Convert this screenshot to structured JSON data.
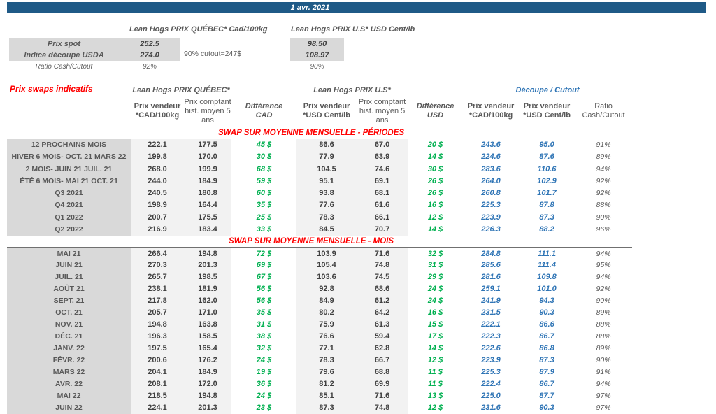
{
  "title_bar": {
    "date": "1 avr. 2021"
  },
  "summary": {
    "qc_header": "Lean Hogs PRIX QUÉBEC* Cad/100kg",
    "us_header": "Lean Hogs PRIX U.S* USD Cent/lb",
    "rows": {
      "spot": {
        "label": "Prix spot",
        "qc": "252.5",
        "us": "98.50"
      },
      "indice": {
        "label": "Indice découpe USDA",
        "qc": "274.0",
        "us": "108.97",
        "note": "90% cutout=247$"
      },
      "ratio": {
        "label": "Ratio Cash/Cutout",
        "qc": "92%",
        "us": "90%"
      }
    }
  },
  "swaps": {
    "title": "Prix swaps indicatifs",
    "group_headers": {
      "qc": "Lean Hogs PRIX QUÉBEC*",
      "us": "Lean Hogs PRIX U.S*",
      "decoupe": "Découpe / Cutout"
    },
    "column_headers": {
      "cad_vendeur": "Prix vendeur\n*CAD/100kg",
      "cad_comptant": "Prix comptant\nhist. moyen 5\nans",
      "diff_cad": "Différence\nCAD",
      "usd_vendeur": "Prix vendeur\n*USD Cent/lb",
      "usd_comptant": "Prix comptant\nhist. moyen 5\nans",
      "diff_usd": "Différence\nUSD",
      "dec_cad": "Prix vendeur\n*CAD/100kg",
      "dec_usd": "Prix vendeur\n*USD Cent/lb",
      "ratio": "Ratio\nCash/Cutout"
    },
    "sections": [
      {
        "title": "SWAP SUR MOYENNE MENSUELLE - PÉRIODES",
        "rows": [
          {
            "label": "12 PROCHAINS MOIS",
            "values": [
              "222.1",
              "177.5",
              "45 $",
              "86.6",
              "67.0",
              "20 $",
              "243.6",
              "95.0",
              "91%"
            ]
          },
          {
            "label": "HIVER 6 MOIS- OCT. 21 MARS 22",
            "values": [
              "199.8",
              "170.0",
              "30 $",
              "77.9",
              "63.9",
              "14 $",
              "224.6",
              "87.6",
              "89%"
            ]
          },
          {
            "label": "2 MOIS- JUIN 21 JUIL. 21",
            "values": [
              "268.0",
              "199.9",
              "68 $",
              "104.5",
              "74.6",
              "30 $",
              "283.6",
              "110.6",
              "94%"
            ]
          },
          {
            "label": "ÉTÉ 6 MOIS- MAI 21 OCT. 21",
            "values": [
              "244.0",
              "184.9",
              "59 $",
              "95.1",
              "69.1",
              "26 $",
              "264.0",
              "102.9",
              "92%"
            ]
          },
          {
            "label": "Q3 2021",
            "values": [
              "240.5",
              "180.8",
              "60 $",
              "93.8",
              "68.1",
              "26 $",
              "260.8",
              "101.7",
              "92%"
            ]
          },
          {
            "label": "Q4 2021",
            "values": [
              "198.9",
              "164.4",
              "35 $",
              "77.6",
              "61.6",
              "16 $",
              "225.3",
              "87.8",
              "88%"
            ]
          },
          {
            "label": "Q1 2022",
            "values": [
              "200.7",
              "175.5",
              "25 $",
              "78.3",
              "66.1",
              "12 $",
              "223.9",
              "87.3",
              "90%"
            ]
          },
          {
            "label": "Q2 2022",
            "values": [
              "216.9",
              "183.4",
              "33 $",
              "84.5",
              "70.7",
              "14 $",
              "226.3",
              "88.2",
              "96%"
            ]
          }
        ]
      },
      {
        "title": "SWAP SUR MOYENNE MENSUELLE - MOIS",
        "rows": [
          {
            "label": "MAI 21",
            "values": [
              "266.4",
              "194.8",
              "72 $",
              "103.9",
              "71.6",
              "32 $",
              "284.8",
              "111.1",
              "94%"
            ]
          },
          {
            "label": "JUIN 21",
            "values": [
              "270.3",
              "201.3",
              "69 $",
              "105.4",
              "74.8",
              "31 $",
              "285.6",
              "111.4",
              "95%"
            ]
          },
          {
            "label": "JUIL. 21",
            "values": [
              "265.7",
              "198.5",
              "67 $",
              "103.6",
              "74.5",
              "29 $",
              "281.6",
              "109.8",
              "94%"
            ]
          },
          {
            "label": "AOÛT 21",
            "values": [
              "238.1",
              "181.9",
              "56 $",
              "92.8",
              "68.6",
              "24 $",
              "259.1",
              "101.0",
              "92%"
            ]
          },
          {
            "label": "SEPT. 21",
            "values": [
              "217.8",
              "162.0",
              "56 $",
              "84.9",
              "61.2",
              "24 $",
              "241.9",
              "94.3",
              "90%"
            ]
          },
          {
            "label": "OCT. 21",
            "values": [
              "205.7",
              "171.0",
              "35 $",
              "80.2",
              "64.2",
              "16 $",
              "231.5",
              "90.3",
              "89%"
            ]
          },
          {
            "label": "NOV. 21",
            "values": [
              "194.8",
              "163.8",
              "31 $",
              "75.9",
              "61.3",
              "15 $",
              "222.1",
              "86.6",
              "88%"
            ]
          },
          {
            "label": "DÉC. 21",
            "values": [
              "196.3",
              "158.5",
              "38 $",
              "76.6",
              "59.4",
              "17 $",
              "222.3",
              "86.7",
              "88%"
            ]
          },
          {
            "label": "JANV. 22",
            "values": [
              "197.5",
              "165.4",
              "32 $",
              "77.1",
              "62.8",
              "14 $",
              "222.6",
              "86.8",
              "89%"
            ]
          },
          {
            "label": "FÉVR. 22",
            "values": [
              "200.6",
              "176.2",
              "24 $",
              "78.3",
              "66.7",
              "12 $",
              "223.9",
              "87.3",
              "90%"
            ]
          },
          {
            "label": "MARS 22",
            "values": [
              "204.1",
              "184.9",
              "19 $",
              "79.6",
              "68.8",
              "11 $",
              "225.3",
              "87.9",
              "91%"
            ]
          },
          {
            "label": "AVR. 22",
            "values": [
              "208.1",
              "172.0",
              "36 $",
              "81.2",
              "69.9",
              "11 $",
              "222.4",
              "86.7",
              "94%"
            ]
          },
          {
            "label": "MAI 22",
            "values": [
              "218.5",
              "194.8",
              "24 $",
              "85.1",
              "71.6",
              "13 $",
              "225.0",
              "87.7",
              "97%"
            ]
          },
          {
            "label": "JUIN 22",
            "values": [
              "224.1",
              "201.3",
              "23 $",
              "87.3",
              "74.8",
              "12 $",
              "231.6",
              "90.3",
              "97%"
            ]
          }
        ]
      }
    ]
  }
}
